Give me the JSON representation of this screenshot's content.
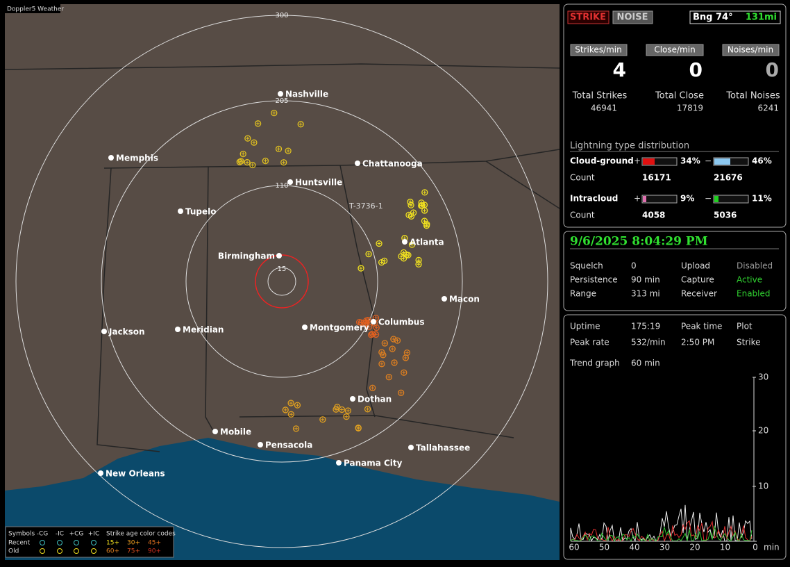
{
  "map": {
    "title": "Doppler5 Weather",
    "ring_labels": [
      "300",
      "205",
      "110",
      "15"
    ],
    "annotation": "T-3736-1",
    "cities": [
      "Nashville",
      "Memphis",
      "Chattanooga",
      "Huntsville",
      "Tupelo",
      "Birmingham",
      "Atlanta",
      "Macon",
      "Jackson",
      "Meridian",
      "Montgomery",
      "Columbus",
      "Dothan",
      "Mobile",
      "Pensacola",
      "Tallahassee",
      "Panama City",
      "New Orleans"
    ]
  },
  "legend": {
    "header": [
      "Symbols",
      "-CG",
      "-IC",
      "+CG",
      "+IC",
      "Strike age color codes"
    ],
    "rows": [
      {
        "label": "Recent",
        "ages": [
          "15+",
          "30+",
          "45+"
        ]
      },
      {
        "label": "Old",
        "ages": [
          "60+",
          "75+",
          "90+"
        ]
      }
    ]
  },
  "status": {
    "strike": "STRIKE",
    "noise": "NOISE",
    "bearing": "Bng 74°",
    "distance": "131mi"
  },
  "rates": [
    {
      "button": "Strikes/min",
      "value": "4",
      "total_label": "Total Strikes",
      "total": "46941"
    },
    {
      "button": "Close/min",
      "value": "0",
      "total_label": "Total Close",
      "total": "17819"
    },
    {
      "button": "Noises/min",
      "value": "0",
      "total_label": "Total Noises",
      "total": "6241"
    }
  ],
  "distribution": {
    "title": "Lightning type distribution",
    "rows": [
      {
        "name": "Cloud-ground",
        "plus": "+",
        "plus_pct": "34%",
        "minus": "−",
        "minus_pct": "46%",
        "count_label": "Count",
        "plus_count": "16171",
        "minus_count": "21676"
      },
      {
        "name": "Intracloud",
        "plus": "+",
        "plus_pct": "9%",
        "minus": "−",
        "minus_pct": "11%",
        "count_label": "Count",
        "plus_count": "4058",
        "minus_count": "5036"
      }
    ]
  },
  "clock": "9/6/2025 8:04:29 PM",
  "settings": [
    [
      "Squelch",
      "0",
      "Upload",
      "Disabled"
    ],
    [
      "Persistence",
      "90 min",
      "Capture",
      "Active"
    ],
    [
      "Range",
      "313 mi",
      "Receiver",
      "Enabled"
    ]
  ],
  "stats": [
    [
      "Uptime",
      "175:19",
      "Peak time",
      "Plot"
    ],
    [
      "Peak rate",
      "532/min",
      "2:50 PM",
      "Strike"
    ],
    [
      "Trend graph",
      "60 min"
    ]
  ],
  "trend": {
    "yticks": [
      "30",
      "20",
      "10"
    ],
    "xticks": [
      "60",
      "50",
      "40",
      "30",
      "20",
      "10",
      "0"
    ],
    "unit": "min"
  }
}
